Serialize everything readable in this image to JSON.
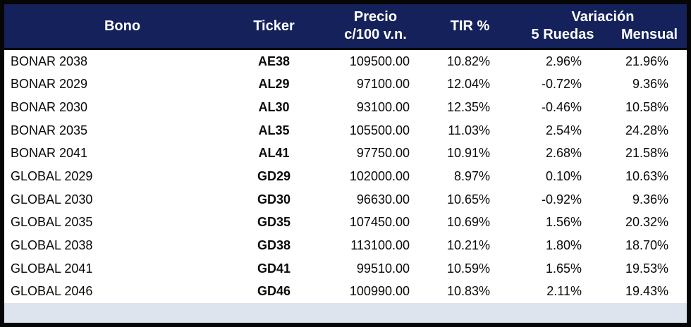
{
  "chart_data": {
    "type": "table",
    "columns": {
      "bono": "Bono",
      "ticker": "Ticker",
      "precio_line1": "Precio",
      "precio_line2": "c/100 v.n.",
      "tir": "TIR %",
      "variacion": "Variación",
      "ruedas_5": "5 Ruedas",
      "mensual": "Mensual"
    },
    "rows": [
      {
        "bono": "BONAR 2038",
        "ticker": "AE38",
        "precio": "109500.00",
        "tir": "10.82%",
        "ruedas_5": "2.96%",
        "mensual": "21.96%"
      },
      {
        "bono": "BONAR 2029",
        "ticker": "AL29",
        "precio": "97100.00",
        "tir": "12.04%",
        "ruedas_5": "-0.72%",
        "mensual": "9.36%"
      },
      {
        "bono": "BONAR 2030",
        "ticker": "AL30",
        "precio": "93100.00",
        "tir": "12.35%",
        "ruedas_5": "-0.46%",
        "mensual": "10.58%"
      },
      {
        "bono": "BONAR 2035",
        "ticker": "AL35",
        "precio": "105500.00",
        "tir": "11.03%",
        "ruedas_5": "2.54%",
        "mensual": "24.28%"
      },
      {
        "bono": "BONAR 2041",
        "ticker": "AL41",
        "precio": "97750.00",
        "tir": "10.91%",
        "ruedas_5": "2.68%",
        "mensual": "21.58%"
      },
      {
        "bono": "GLOBAL 2029",
        "ticker": "GD29",
        "precio": "102000.00",
        "tir": "8.97%",
        "ruedas_5": "0.10%",
        "mensual": "10.63%"
      },
      {
        "bono": "GLOBAL 2030",
        "ticker": "GD30",
        "precio": "96630.00",
        "tir": "10.65%",
        "ruedas_5": "-0.92%",
        "mensual": "9.36%"
      },
      {
        "bono": "GLOBAL 2035",
        "ticker": "GD35",
        "precio": "107450.00",
        "tir": "10.69%",
        "ruedas_5": "1.56%",
        "mensual": "20.32%"
      },
      {
        "bono": "GLOBAL 2038",
        "ticker": "GD38",
        "precio": "113100.00",
        "tir": "10.21%",
        "ruedas_5": "1.80%",
        "mensual": "18.70%"
      },
      {
        "bono": "GLOBAL 2041",
        "ticker": "GD41",
        "precio": "99510.00",
        "tir": "10.59%",
        "ruedas_5": "1.65%",
        "mensual": "19.53%"
      },
      {
        "bono": "GLOBAL 2046",
        "ticker": "GD46",
        "precio": "100990.00",
        "tir": "10.83%",
        "ruedas_5": "2.11%",
        "mensual": "19.43%"
      }
    ]
  },
  "colors": {
    "header_bg": "#14215a",
    "header_text": "#ffffff",
    "body_bg": "#ffffff",
    "body_text": "#0a0a0a",
    "footer_bg": "#dde4ee",
    "border": "#060606"
  }
}
